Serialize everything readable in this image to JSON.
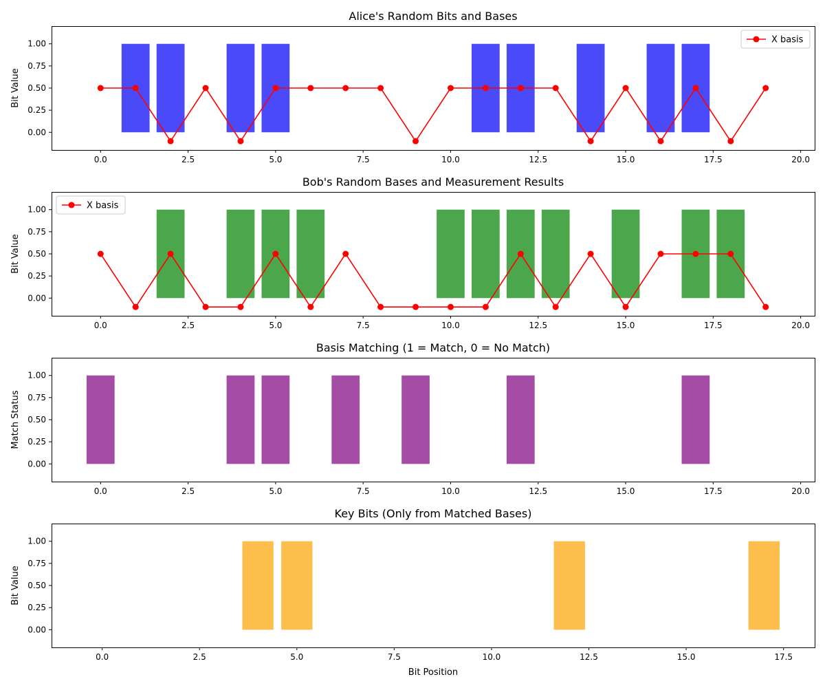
{
  "chart_data": [
    {
      "type": "bar",
      "title": "Alice's Random Bits and Bases",
      "xlabel": "",
      "ylabel": "Bit Value",
      "xlim": [
        -1.4,
        20.4
      ],
      "ylim": [
        -0.2,
        1.2
      ],
      "xticks": [
        0,
        2.5,
        5,
        7.5,
        10,
        12.5,
        15,
        17.5,
        20
      ],
      "xtick_labels": [
        "0.0",
        "2.5",
        "5.0",
        "7.5",
        "10.0",
        "12.5",
        "15.0",
        "17.5",
        "20.0"
      ],
      "yticks": [
        0,
        0.25,
        0.5,
        0.75,
        1
      ],
      "ytick_labels": [
        "0.00",
        "0.25",
        "0.50",
        "0.75",
        "1.00"
      ],
      "bar_width": 0.8,
      "bar_color": "#4a4af8",
      "bars": {
        "x": [
          0,
          1,
          2,
          3,
          4,
          5,
          6,
          7,
          8,
          9,
          10,
          11,
          12,
          13,
          14,
          15,
          16,
          17,
          18,
          19
        ],
        "values": [
          0,
          1,
          1,
          0,
          1,
          1,
          0,
          0,
          0,
          0,
          0,
          1,
          1,
          0,
          1,
          0,
          1,
          1,
          0,
          0
        ]
      },
      "line": {
        "name": "X basis",
        "color": "#ff0000",
        "x": [
          0,
          1,
          2,
          3,
          4,
          5,
          6,
          7,
          8,
          9,
          10,
          11,
          12,
          13,
          14,
          15,
          16,
          17,
          18,
          19
        ],
        "values": [
          0.5,
          0.5,
          -0.1,
          0.5,
          -0.1,
          0.5,
          0.5,
          0.5,
          0.5,
          -0.1,
          0.5,
          0.5,
          0.5,
          0.5,
          -0.1,
          0.5,
          -0.1,
          0.5,
          -0.1,
          0.5
        ]
      },
      "legend_loc": "upper right"
    },
    {
      "type": "bar",
      "title": "Bob's Random Bases and Measurement Results",
      "xlabel": "",
      "ylabel": "Bit Value",
      "xlim": [
        -1.4,
        20.4
      ],
      "ylim": [
        -0.2,
        1.2
      ],
      "xticks": [
        0,
        2.5,
        5,
        7.5,
        10,
        12.5,
        15,
        17.5,
        20
      ],
      "xtick_labels": [
        "0.0",
        "2.5",
        "5.0",
        "7.5",
        "10.0",
        "12.5",
        "15.0",
        "17.5",
        "20.0"
      ],
      "yticks": [
        0,
        0.25,
        0.5,
        0.75,
        1
      ],
      "ytick_labels": [
        "0.00",
        "0.25",
        "0.50",
        "0.75",
        "1.00"
      ],
      "bar_width": 0.8,
      "bar_color": "#4ca64c",
      "bars": {
        "x": [
          0,
          1,
          2,
          3,
          4,
          5,
          6,
          7,
          8,
          9,
          10,
          11,
          12,
          13,
          14,
          15,
          16,
          17,
          18,
          19
        ],
        "values": [
          0,
          0,
          1,
          0,
          1,
          1,
          1,
          0,
          0,
          0,
          1,
          1,
          1,
          1,
          0,
          1,
          0,
          1,
          1,
          0
        ]
      },
      "line": {
        "name": "X basis",
        "color": "#ff0000",
        "x": [
          0,
          1,
          2,
          3,
          4,
          5,
          6,
          7,
          8,
          9,
          10,
          11,
          12,
          13,
          14,
          15,
          16,
          17,
          18,
          19
        ],
        "values": [
          0.5,
          -0.1,
          0.5,
          -0.1,
          -0.1,
          0.5,
          -0.1,
          0.5,
          -0.1,
          -0.1,
          -0.1,
          -0.1,
          0.5,
          -0.1,
          0.5,
          -0.1,
          0.5,
          0.5,
          0.5,
          -0.1
        ]
      },
      "legend_loc": "upper left"
    },
    {
      "type": "bar",
      "title": "Basis Matching (1 = Match, 0 = No Match)",
      "xlabel": "",
      "ylabel": "Match Status",
      "xlim": [
        -1.4,
        20.4
      ],
      "ylim": [
        -0.2,
        1.2
      ],
      "xticks": [
        0,
        2.5,
        5,
        7.5,
        10,
        12.5,
        15,
        17.5,
        20
      ],
      "xtick_labels": [
        "0.0",
        "2.5",
        "5.0",
        "7.5",
        "10.0",
        "12.5",
        "15.0",
        "17.5",
        "20.0"
      ],
      "yticks": [
        0,
        0.25,
        0.5,
        0.75,
        1
      ],
      "ytick_labels": [
        "0.00",
        "0.25",
        "0.50",
        "0.75",
        "1.00"
      ],
      "bar_width": 0.8,
      "bar_color": "#a54ca5",
      "bars": {
        "x": [
          0,
          1,
          2,
          3,
          4,
          5,
          6,
          7,
          8,
          9,
          10,
          11,
          12,
          13,
          14,
          15,
          16,
          17,
          18,
          19
        ],
        "values": [
          1,
          0,
          0,
          0,
          1,
          1,
          0,
          1,
          0,
          1,
          0,
          0,
          1,
          0,
          0,
          0,
          0,
          1,
          0,
          0
        ]
      },
      "line": null,
      "legend_loc": ""
    },
    {
      "type": "bar",
      "title": "Key Bits (Only from Matched Bases)",
      "xlabel": "Bit Position",
      "ylabel": "Bit Value",
      "xlim": [
        -1.3,
        18.3
      ],
      "ylim": [
        -0.2,
        1.2
      ],
      "xticks": [
        0,
        2.5,
        5,
        7.5,
        10,
        12.5,
        15,
        17.5
      ],
      "xtick_labels": [
        "0.0",
        "2.5",
        "5.0",
        "7.5",
        "10.0",
        "12.5",
        "15.0",
        "17.5"
      ],
      "yticks": [
        0,
        0.25,
        0.5,
        0.75,
        1
      ],
      "ytick_labels": [
        "0.00",
        "0.25",
        "0.50",
        "0.75",
        "1.00"
      ],
      "bar_width": 0.8,
      "bar_color": "#fdbe4c",
      "bars": {
        "x": [
          0,
          4,
          5,
          7,
          9,
          12,
          17
        ],
        "values": [
          0,
          1,
          1,
          0,
          0,
          1,
          1
        ]
      },
      "line": null,
      "legend_loc": ""
    }
  ]
}
